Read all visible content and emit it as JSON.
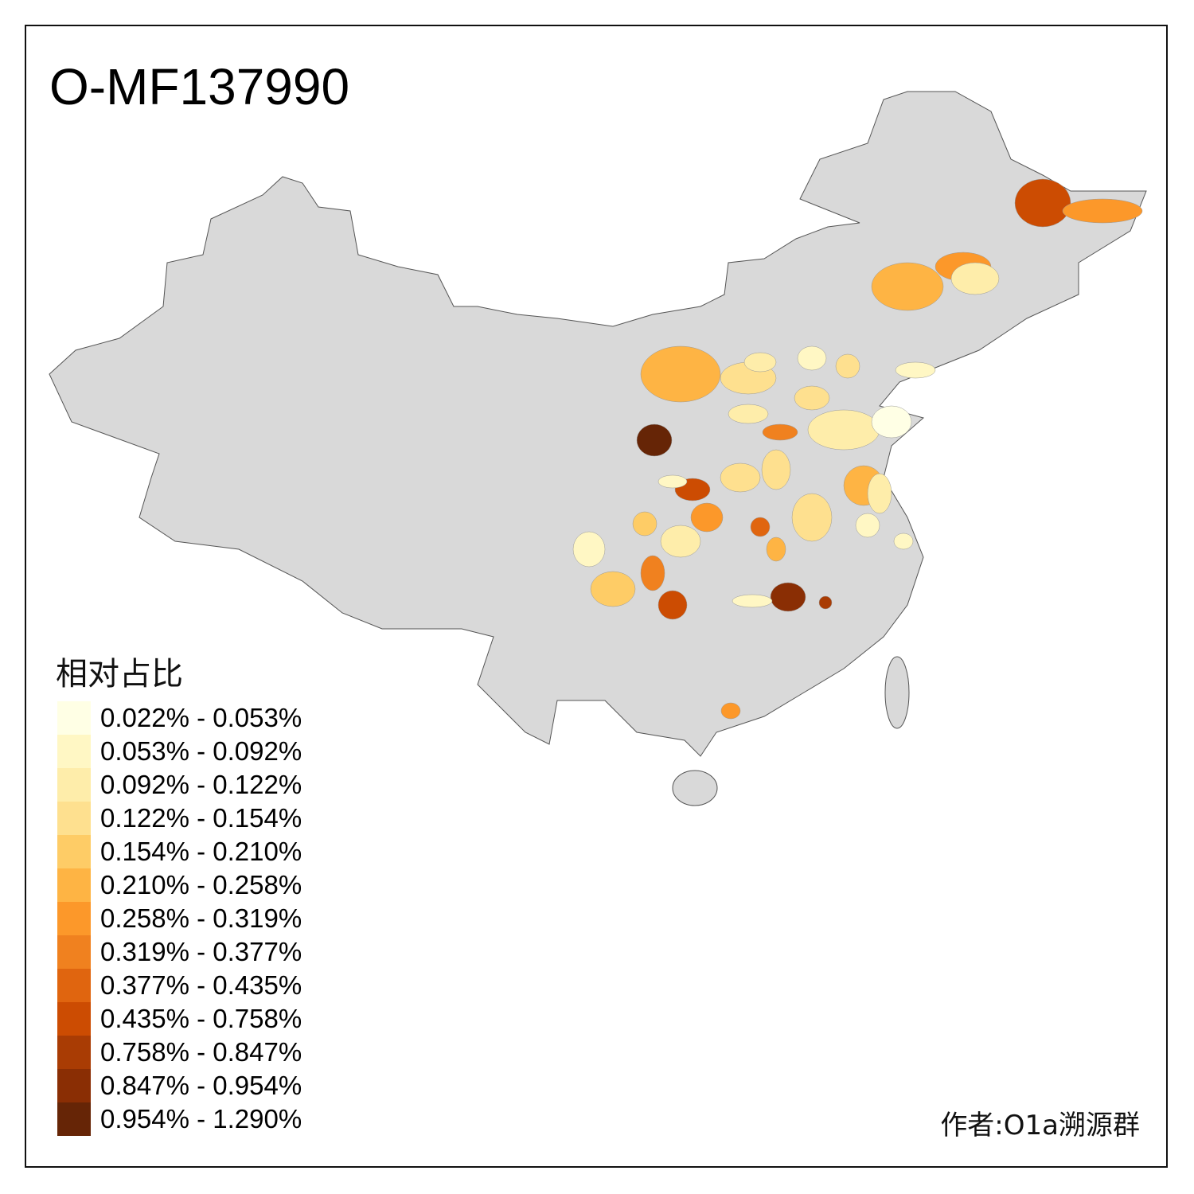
{
  "title": "O-MF137990",
  "legend": {
    "title": "相对占比",
    "items": [
      {
        "label": "0.022% - 0.053%",
        "color": "#FFFFE5"
      },
      {
        "label": "0.053% - 0.092%",
        "color": "#FFF7C4"
      },
      {
        "label": "0.092% - 0.122%",
        "color": "#FEEDAA"
      },
      {
        "label": "0.122% - 0.154%",
        "color": "#FEE08F"
      },
      {
        "label": "0.154% - 0.210%",
        "color": "#FECC66"
      },
      {
        "label": "0.210% - 0.258%",
        "color": "#FEB444"
      },
      {
        "label": "0.258% - 0.319%",
        "color": "#FC982A"
      },
      {
        "label": "0.319% - 0.377%",
        "color": "#F0811F"
      },
      {
        "label": "0.377% - 0.435%",
        "color": "#E0650F"
      },
      {
        "label": "0.435% - 0.758%",
        "color": "#CC4C02"
      },
      {
        "label": "0.758% - 0.847%",
        "color": "#A93C04"
      },
      {
        "label": "0.847% - 0.954%",
        "color": "#8A2E04"
      },
      {
        "label": "0.954% - 1.290%",
        "color": "#662506"
      }
    ]
  },
  "author": "作者:O1a溯源群",
  "map": {
    "base_color": "#D9D9D9",
    "border_color": "#555555"
  }
}
